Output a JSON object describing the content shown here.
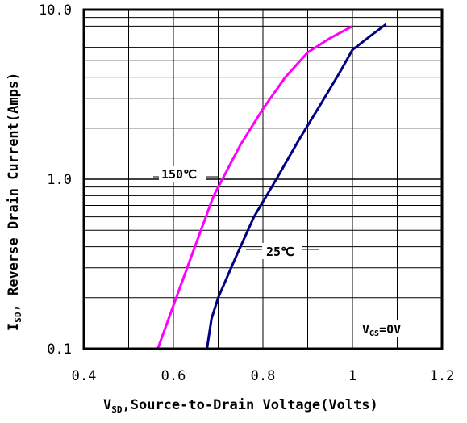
{
  "chart_data": {
    "type": "line",
    "x_axis": {
      "label_main": "V",
      "label_sub": "SD",
      "label_rest": ",Source-to-Drain Voltage(Volts)",
      "range": [
        0.4,
        1.2
      ],
      "ticks": [
        0.4,
        0.6,
        0.8,
        1.0,
        1.2
      ],
      "tick_labels": [
        "0.4",
        "0.6",
        "0.8",
        "1",
        "1.2"
      ],
      "scale": "linear"
    },
    "y_axis": {
      "label_main": "I",
      "label_sub": "SD",
      "label_rest": ", Reverse Drain Current(Amps)",
      "range": [
        0.1,
        10
      ],
      "ticks": [
        0.1,
        1.0,
        10.0
      ],
      "tick_labels": [
        "0.1",
        "1.0",
        "10.0"
      ],
      "scale": "log"
    },
    "grid": true,
    "series": [
      {
        "name": "150℃",
        "color": "#ff00ff",
        "x": [
          0.565,
          0.6,
          0.64,
          0.69,
          0.75,
          0.8,
          0.85,
          0.9,
          0.95,
          1.0
        ],
        "y": [
          0.1,
          0.18,
          0.35,
          0.8,
          1.6,
          2.6,
          4.0,
          5.6,
          6.8,
          8.0
        ]
      },
      {
        "name": "25℃",
        "color": "#000080",
        "x": [
          0.675,
          0.685,
          0.7,
          0.74,
          0.78,
          0.83,
          0.88,
          0.93,
          0.97,
          1.0,
          1.04,
          1.075
        ],
        "y": [
          0.1,
          0.15,
          0.2,
          0.35,
          0.6,
          1.0,
          1.7,
          2.8,
          4.2,
          5.8,
          7.0,
          8.2
        ]
      }
    ],
    "annotations": {
      "series_150": "150℃",
      "series_25": "25℃",
      "vgs_main": "V",
      "vgs_sub": "GS",
      "vgs_rest": "=0V"
    }
  }
}
